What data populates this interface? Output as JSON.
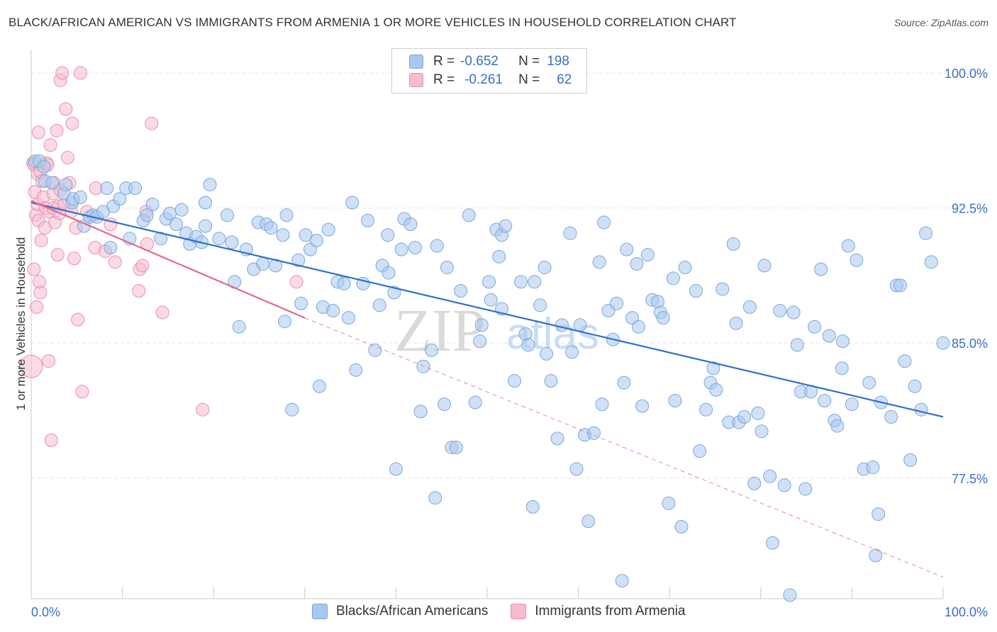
{
  "header": {
    "title": "BLACK/AFRICAN AMERICAN VS IMMIGRANTS FROM ARMENIA 1 OR MORE VEHICLES IN HOUSEHOLD CORRELATION CHART",
    "source": "Source: ZipAtlas.com"
  },
  "legend": {
    "row1": {
      "r_label": "R =",
      "r_value": "-0.652",
      "n_label": "N =",
      "n_value": "198"
    },
    "row2": {
      "r_label": "R =",
      "r_value": "-0.261",
      "n_label": "N =",
      "n_value": "62"
    }
  },
  "bottom_legend": {
    "series1": "Blacks/African Americans",
    "series2": "Immigrants from Armenia"
  },
  "watermark": {
    "zip": "ZIP",
    "atlas": "atlas"
  },
  "colors": {
    "blue_fill": "#aac8ee",
    "blue_stroke": "#7aa6dc",
    "blue_line": "#2f6fcc",
    "pink_fill": "#f5bccd",
    "pink_stroke": "#e890ab",
    "pink_line": "#e0688f",
    "tick_label": "#3a6fc4",
    "grid": "#e4e4e4"
  },
  "chart_data": {
    "type": "scatter",
    "title": "BLACK/AFRICAN AMERICAN VS IMMIGRANTS FROM ARMENIA 1 OR MORE VEHICLES IN HOUSEHOLD CORRELATION CHART",
    "xlabel": "",
    "ylabel": "1 or more Vehicles in Household",
    "xlim": [
      0,
      100
    ],
    "ylim": [
      70.8,
      101.3
    ],
    "x_tick_labels": [
      "0.0%",
      "100.0%"
    ],
    "y_ticks": [
      77.5,
      85.0,
      92.5,
      100.0
    ],
    "y_tick_labels": [
      "77.5%",
      "85.0%",
      "92.5%",
      "100.0%"
    ],
    "grid": true,
    "legend_position": "top-center",
    "series": [
      {
        "name": "Blacks/African Americans",
        "r": -0.652,
        "n": 198,
        "trend": {
          "x": [
            0,
            100
          ],
          "y": [
            92.8,
            80.9
          ],
          "style": "solid"
        },
        "points": [
          [
            0.4,
            95.1
          ],
          [
            0.9,
            95.1
          ],
          [
            1.4,
            94.8
          ],
          [
            1.5,
            94.0
          ],
          [
            2.3,
            93.9
          ],
          [
            3.6,
            93.3
          ],
          [
            3.8,
            93.8
          ],
          [
            4.5,
            92.8
          ],
          [
            4.6,
            93.0
          ],
          [
            5.4,
            93.1
          ],
          [
            5.8,
            91.5
          ],
          [
            6.4,
            92.0
          ],
          [
            6.8,
            92.1
          ],
          [
            7.2,
            92.0
          ],
          [
            7.9,
            92.3
          ],
          [
            8.3,
            93.6
          ],
          [
            8.7,
            90.3
          ],
          [
            9.0,
            92.6
          ],
          [
            9.7,
            93.0
          ],
          [
            10.4,
            93.6
          ],
          [
            10.8,
            90.8
          ],
          [
            11.4,
            93.6
          ],
          [
            12.3,
            91.8
          ],
          [
            12.7,
            92.1
          ],
          [
            13.3,
            92.7
          ],
          [
            14.2,
            90.8
          ],
          [
            14.8,
            91.9
          ],
          [
            15.2,
            92.2
          ],
          [
            15.9,
            91.6
          ],
          [
            16.5,
            92.4
          ],
          [
            17.0,
            91.1
          ],
          [
            17.4,
            90.5
          ],
          [
            18.1,
            90.9
          ],
          [
            18.7,
            90.6
          ],
          [
            19.1,
            91.5
          ],
          [
            19.1,
            92.8
          ],
          [
            19.6,
            93.8
          ],
          [
            20.6,
            90.8
          ],
          [
            21.5,
            92.1
          ],
          [
            22.0,
            90.6
          ],
          [
            22.3,
            88.4
          ],
          [
            22.8,
            85.9
          ],
          [
            23.6,
            90.2
          ],
          [
            24.4,
            89.1
          ],
          [
            24.9,
            91.7
          ],
          [
            25.4,
            89.4
          ],
          [
            25.8,
            91.6
          ],
          [
            26.3,
            91.4
          ],
          [
            26.8,
            89.3
          ],
          [
            27.6,
            91.0
          ],
          [
            27.8,
            86.2
          ],
          [
            28.0,
            92.1
          ],
          [
            28.6,
            81.3
          ],
          [
            29.3,
            89.6
          ],
          [
            29.6,
            87.2
          ],
          [
            30.1,
            91.0
          ],
          [
            30.6,
            90.2
          ],
          [
            31.3,
            90.7
          ],
          [
            31.6,
            82.6
          ],
          [
            32.0,
            87.0
          ],
          [
            32.6,
            91.3
          ],
          [
            33.1,
            86.8
          ],
          [
            33.6,
            88.4
          ],
          [
            34.3,
            88.3
          ],
          [
            34.8,
            86.4
          ],
          [
            35.2,
            92.8
          ],
          [
            35.6,
            83.5
          ],
          [
            36.4,
            88.3
          ],
          [
            36.9,
            91.8
          ],
          [
            37.7,
            84.6
          ],
          [
            38.2,
            87.1
          ],
          [
            38.5,
            89.3
          ],
          [
            39.1,
            91.0
          ],
          [
            39.2,
            88.9
          ],
          [
            39.8,
            87.8
          ],
          [
            40.0,
            78.0
          ],
          [
            40.6,
            90.2
          ],
          [
            40.9,
            91.9
          ],
          [
            41.6,
            91.6
          ],
          [
            42.1,
            90.3
          ],
          [
            42.7,
            81.2
          ],
          [
            43.0,
            83.7
          ],
          [
            43.9,
            84.6
          ],
          [
            44.3,
            76.4
          ],
          [
            44.5,
            90.4
          ],
          [
            45.3,
            81.6
          ],
          [
            45.6,
            89.2
          ],
          [
            46.1,
            79.2
          ],
          [
            46.6,
            79.2
          ],
          [
            47.1,
            87.9
          ],
          [
            48.0,
            92.1
          ],
          [
            48.7,
            81.7
          ],
          [
            49.2,
            85.1
          ],
          [
            49.4,
            86.0
          ],
          [
            50.2,
            88.4
          ],
          [
            50.4,
            87.4
          ],
          [
            51.0,
            91.3
          ],
          [
            51.3,
            89.8
          ],
          [
            51.6,
            86.9
          ],
          [
            51.6,
            91.0
          ],
          [
            52.0,
            91.5
          ],
          [
            53.0,
            82.9
          ],
          [
            53.7,
            88.4
          ],
          [
            54.2,
            85.5
          ],
          [
            54.5,
            84.9
          ],
          [
            55.0,
            75.9
          ],
          [
            55.2,
            88.4
          ],
          [
            55.8,
            87.1
          ],
          [
            56.3,
            89.2
          ],
          [
            56.5,
            84.4
          ],
          [
            57.0,
            82.9
          ],
          [
            57.7,
            79.7
          ],
          [
            58.2,
            86.0
          ],
          [
            59.1,
            91.1
          ],
          [
            59.3,
            84.5
          ],
          [
            59.8,
            78.0
          ],
          [
            60.2,
            86.0
          ],
          [
            60.7,
            79.9
          ],
          [
            61.1,
            75.1
          ],
          [
            61.7,
            80.0
          ],
          [
            62.3,
            89.5
          ],
          [
            62.6,
            81.6
          ],
          [
            62.8,
            91.7
          ],
          [
            63.3,
            86.8
          ],
          [
            63.8,
            85.2
          ],
          [
            64.2,
            87.2
          ],
          [
            64.8,
            71.8
          ],
          [
            65.0,
            82.8
          ],
          [
            65.3,
            90.2
          ],
          [
            65.9,
            86.4
          ],
          [
            66.4,
            89.4
          ],
          [
            66.6,
            85.9
          ],
          [
            67.0,
            81.5
          ],
          [
            67.6,
            89.9
          ],
          [
            68.1,
            87.4
          ],
          [
            68.7,
            87.3
          ],
          [
            69.0,
            86.7
          ],
          [
            69.3,
            86.4
          ],
          [
            69.9,
            76.1
          ],
          [
            70.4,
            88.6
          ],
          [
            70.6,
            81.8
          ],
          [
            71.3,
            74.8
          ],
          [
            71.7,
            89.2
          ],
          [
            72.9,
            87.9
          ],
          [
            73.3,
            79.0
          ],
          [
            74.0,
            81.3
          ],
          [
            74.5,
            82.8
          ],
          [
            74.8,
            83.6
          ],
          [
            75.1,
            82.4
          ],
          [
            75.8,
            88.0
          ],
          [
            76.5,
            80.6
          ],
          [
            77.0,
            90.5
          ],
          [
            77.3,
            86.1
          ],
          [
            77.6,
            80.6
          ],
          [
            78.2,
            80.9
          ],
          [
            78.8,
            87.0
          ],
          [
            79.3,
            77.2
          ],
          [
            79.7,
            81.1
          ],
          [
            80.1,
            80.1
          ],
          [
            80.4,
            89.3
          ],
          [
            81.0,
            77.6
          ],
          [
            81.3,
            73.9
          ],
          [
            82.1,
            86.8
          ],
          [
            82.6,
            77.1
          ],
          [
            83.2,
            71.0
          ],
          [
            83.6,
            86.7
          ],
          [
            84.0,
            84.9
          ],
          [
            84.4,
            82.3
          ],
          [
            84.9,
            76.9
          ],
          [
            85.5,
            82.3
          ],
          [
            85.9,
            85.9
          ],
          [
            86.6,
            89.1
          ],
          [
            87.0,
            81.8
          ],
          [
            87.5,
            85.4
          ],
          [
            88.1,
            80.7
          ],
          [
            88.4,
            80.4
          ],
          [
            88.9,
            83.6
          ],
          [
            89.0,
            85.1
          ],
          [
            89.6,
            90.4
          ],
          [
            90.0,
            81.6
          ],
          [
            90.5,
            89.6
          ],
          [
            91.3,
            78.0
          ],
          [
            91.9,
            82.8
          ],
          [
            92.3,
            78.1
          ],
          [
            92.6,
            73.2
          ],
          [
            92.9,
            75.5
          ],
          [
            93.2,
            81.7
          ],
          [
            94.3,
            80.9
          ],
          [
            94.9,
            88.2
          ],
          [
            95.3,
            88.2
          ],
          [
            95.8,
            84.0
          ],
          [
            96.4,
            78.5
          ],
          [
            96.9,
            82.6
          ],
          [
            97.6,
            81.3
          ],
          [
            98.1,
            91.1
          ],
          [
            98.7,
            89.5
          ],
          [
            100.0,
            85.0
          ]
        ]
      },
      {
        "name": "Immigrants from Armenia",
        "r": -0.261,
        "n": 62,
        "trend": {
          "x": [
            0,
            30
          ],
          "y": [
            92.9,
            86.4
          ],
          "style": "solid",
          "extension": {
            "x": [
              30,
              100
            ],
            "y": [
              86.4,
              72.0
            ],
            "style": "dashed"
          }
        },
        "points": [
          [
            0.0,
            83.7
          ],
          [
            0.2,
            95.0
          ],
          [
            0.3,
            89.1
          ],
          [
            0.3,
            94.9
          ],
          [
            0.4,
            93.4
          ],
          [
            0.5,
            92.1
          ],
          [
            0.6,
            87.0
          ],
          [
            0.7,
            92.7
          ],
          [
            0.7,
            94.4
          ],
          [
            0.8,
            91.8
          ],
          [
            0.8,
            96.7
          ],
          [
            0.9,
            88.4
          ],
          [
            1.0,
            87.8
          ],
          [
            1.0,
            94.5
          ],
          [
            1.1,
            90.7
          ],
          [
            1.2,
            94.0
          ],
          [
            1.3,
            93.1
          ],
          [
            1.5,
            91.4
          ],
          [
            1.6,
            92.5
          ],
          [
            1.7,
            95.0
          ],
          [
            1.8,
            94.9
          ],
          [
            1.9,
            84.0
          ],
          [
            2.0,
            92.3
          ],
          [
            2.1,
            96.0
          ],
          [
            2.2,
            79.6
          ],
          [
            2.4,
            92.5
          ],
          [
            2.4,
            93.3
          ],
          [
            2.5,
            93.9
          ],
          [
            2.6,
            91.7
          ],
          [
            2.8,
            96.8
          ],
          [
            2.9,
            89.9
          ],
          [
            3.0,
            92.6
          ],
          [
            3.1,
            92.2
          ],
          [
            3.2,
            93.5
          ],
          [
            3.2,
            99.6
          ],
          [
            3.4,
            100.0
          ],
          [
            3.6,
            92.7
          ],
          [
            3.8,
            98.0
          ],
          [
            4.0,
            95.3
          ],
          [
            4.2,
            93.9
          ],
          [
            4.4,
            92.3
          ],
          [
            4.5,
            97.2
          ],
          [
            4.7,
            89.7
          ],
          [
            4.9,
            91.4
          ],
          [
            5.1,
            86.3
          ],
          [
            5.4,
            100.0
          ],
          [
            5.6,
            82.3
          ],
          [
            6.1,
            92.3
          ],
          [
            7.0,
            90.3
          ],
          [
            7.1,
            93.6
          ],
          [
            8.1,
            90.1
          ],
          [
            8.7,
            91.6
          ],
          [
            9.2,
            89.5
          ],
          [
            11.8,
            87.9
          ],
          [
            11.9,
            89.1
          ],
          [
            12.2,
            89.3
          ],
          [
            12.6,
            92.3
          ],
          [
            12.7,
            90.5
          ],
          [
            13.2,
            97.2
          ],
          [
            14.4,
            86.7
          ],
          [
            18.8,
            81.3
          ],
          [
            29.1,
            88.4
          ]
        ]
      }
    ]
  }
}
